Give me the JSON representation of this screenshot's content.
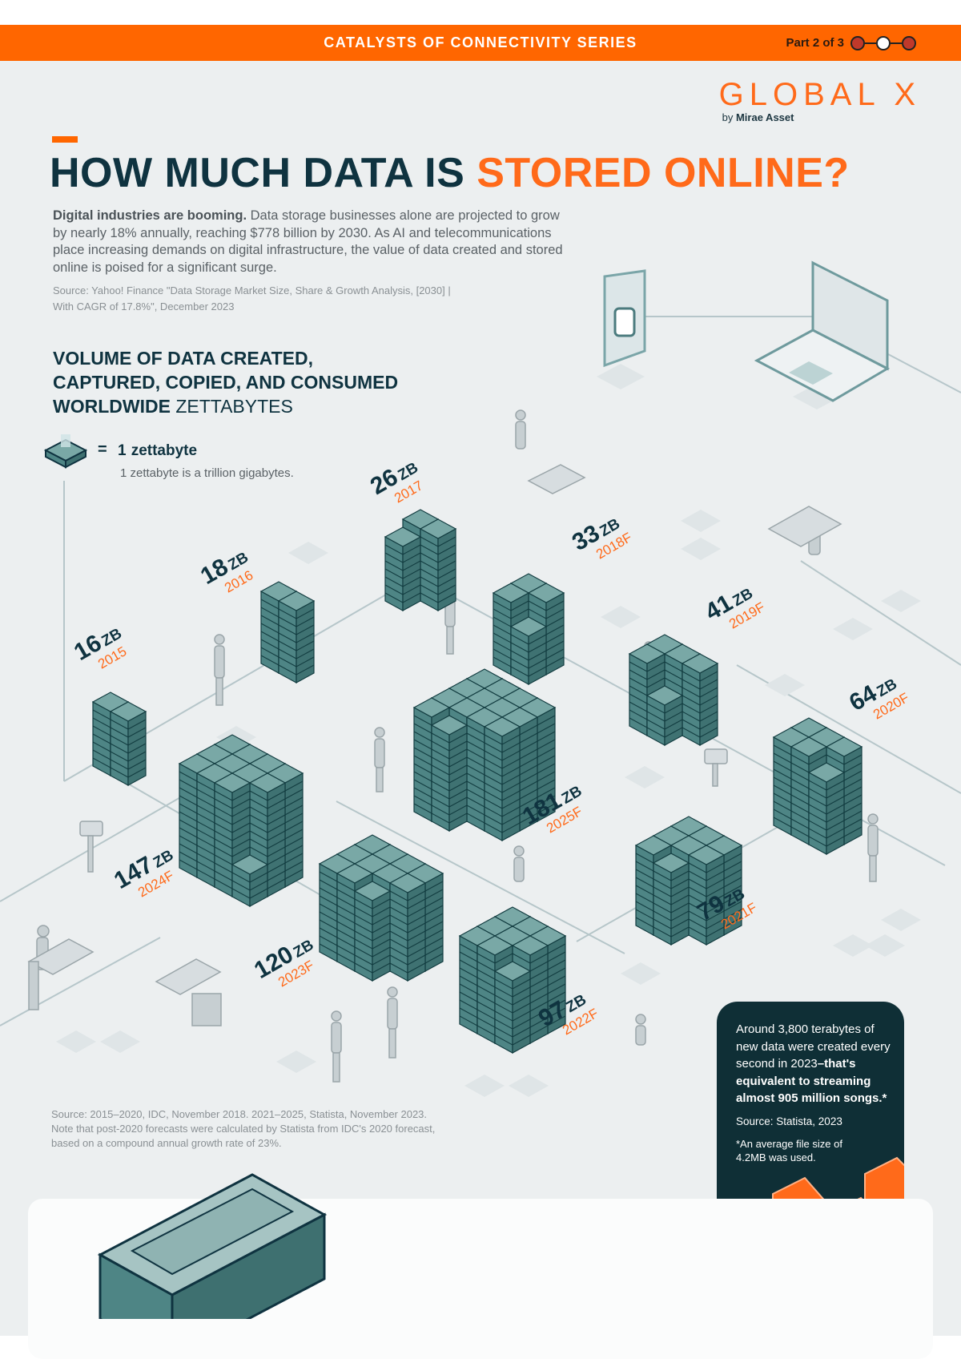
{
  "banner": {
    "title": "CATALYSTS OF CONNECTIVITY SERIES",
    "part_label": "Part 2 of 3",
    "part_current": 2,
    "part_total": 3
  },
  "brand": {
    "name": "GLOBAL X",
    "by_prefix": "by",
    "by_name": "Mirae Asset"
  },
  "headline": {
    "dark": "HOW MUCH DATA IS ",
    "orange": "STORED ONLINE?"
  },
  "intro": {
    "lead": "Digital industries are booming.",
    "body": " Data storage businesses alone are projected to grow by nearly 18% annually, reaching $778 billion by 2030. As AI and telecommunications place increasing demands on digital infrastructure, the value of data created and stored online is poised for a significant surge.",
    "source_line1": "Source: Yahoo! Finance \"Data Storage Market Size, Share & Growth Analysis, [2030] |",
    "source_line2": "With CAGR of 17.8%\", December 2023"
  },
  "section": {
    "line1": "VOLUME OF DATA CREATED,",
    "line2": "CAPTURED, COPIED, AND CONSUMED",
    "line3_bold": "WORLDWIDE",
    "line3_unit": "ZETTABYTES"
  },
  "legend": {
    "equals": "=",
    "one": "1",
    "unit": "zettabyte",
    "note": "1 zettabyte is a trillion gigabytes.",
    "icon": "server-unit-icon"
  },
  "chart_data": {
    "type": "bar",
    "title": "VOLUME OF DATA CREATED, CAPTURED, COPIED, AND CONSUMED WORLDWIDE",
    "ylabel": "ZETTABYTES",
    "unit_label": "ZB",
    "categories": [
      "2015",
      "2016",
      "2017",
      "2018F",
      "2019F",
      "2020F",
      "2021F",
      "2022F",
      "2023F",
      "2024F",
      "2025F"
    ],
    "values": [
      16,
      18,
      26,
      33,
      41,
      64,
      79,
      97,
      120,
      147,
      181
    ],
    "value_labels": [
      "16",
      "18",
      "26",
      "33",
      "41",
      "64",
      "79",
      "97",
      "120",
      "147",
      "181"
    ],
    "colors": {
      "server": "#4e8585",
      "server_top": "#79a8a6",
      "outline": "#e0561b",
      "label_dark": "#0f3340",
      "label_orange": "#ff6a1a"
    }
  },
  "sources": {
    "line1": "Source: 2015–2020, IDC, November 2018. 2021–2025, Statista, November 2023.",
    "line2": "Note that post-2020 forecasts were calculated by Statista from IDC's 2020 forecast,",
    "line3": "based on a compound annual growth rate of 23%."
  },
  "fact_box": {
    "text_a": "Around 3,800 terabytes of new data were created every second in 2023",
    "text_b": "–that's equivalent to streaming almost 905 million songs.*",
    "source": "Source: Statista, 2023",
    "note": "*An average file size of 4.2MB was used."
  }
}
